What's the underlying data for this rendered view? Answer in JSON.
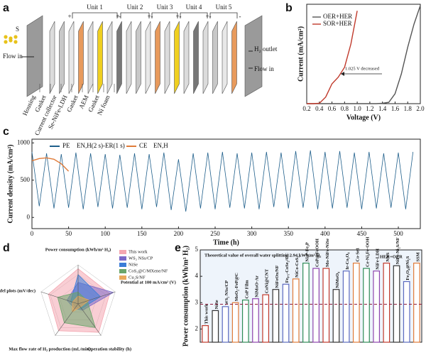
{
  "diagram": {
    "label": "a",
    "units": [
      "Unit 1",
      "Unit 2",
      "Unit 3",
      "Unit 4",
      "Unit 5"
    ],
    "molecule": "S",
    "left_inlet": "Flow in",
    "outlet": "H₂ outlet",
    "right_inlet": "Flow in",
    "layers": [
      "Housing",
      "Gasket",
      "Current collector",
      "Se-NiFe-LDH",
      "Gasket",
      "AEM",
      "Gasket",
      "Ni foam"
    ],
    "plus": "+",
    "minus": "-"
  },
  "chart_data": [
    {
      "label": "b",
      "type": "line",
      "xlabel": "Voltage (V)",
      "ylabel": "Current (mA/cm²)",
      "x": [
        0.2,
        0.3,
        0.4,
        0.5,
        0.6,
        0.7,
        0.8,
        0.9,
        1.0,
        1.1,
        1.2,
        1.3,
        1.4,
        1.5,
        1.6,
        1.7,
        1.8,
        1.9,
        2.0
      ],
      "series": [
        {
          "name": "OER+HER",
          "color": "#555555",
          "values": [
            0,
            0,
            0,
            0,
            0,
            0,
            0,
            0,
            0,
            0,
            0,
            0,
            5,
            20,
            150,
            450,
            850,
            1200,
            1480
          ]
        },
        {
          "name": "SOR+HER",
          "color": "#c0392b",
          "values": [
            0,
            0,
            5,
            100,
            300,
            400,
            550,
            900,
            1400,
            null,
            null,
            null,
            null,
            null,
            null,
            null,
            null,
            null,
            null
          ]
        }
      ],
      "xlim": [
        0.2,
        2.0
      ],
      "xticks": [
        0.2,
        0.4,
        0.6,
        0.8,
        {
          "value": 1.0,
          "label": "1.0"
        },
        1.2,
        1.4,
        1.6,
        1.8,
        {
          "value": 2.0,
          "label": "2.0"
        }
      ],
      "ylim": [
        0,
        1500
      ],
      "annotation": "1.025 V decreased",
      "legend": "upper left"
    },
    {
      "label": "c",
      "type": "line",
      "xlabel": "Time (h)",
      "ylabel": "Current density (mA/cm²)",
      "x": [
        0,
        10,
        20,
        30,
        40,
        50,
        60,
        70,
        80,
        90,
        100,
        110,
        120,
        130,
        140,
        150,
        160,
        170,
        180,
        190,
        200,
        210,
        220,
        230,
        240,
        250,
        260,
        270,
        280,
        290,
        300,
        310,
        320,
        330,
        340,
        350,
        360,
        370,
        380,
        390,
        400,
        410,
        420,
        430,
        440,
        450,
        460,
        470,
        480,
        490,
        500,
        510,
        520
      ],
      "series": [
        {
          "name": "PE",
          "color": "#1f5f8b",
          "values": [
            880,
            150,
            860,
            120,
            850,
            130,
            870,
            110,
            860,
            140,
            850,
            120,
            840,
            130,
            860,
            110,
            850,
            140,
            870,
            100,
            780,
            80,
            860,
            120,
            870,
            110,
            880,
            130,
            860,
            120,
            870,
            110,
            880,
            140,
            870,
            120,
            890,
            130,
            900,
            110,
            880,
            120,
            890,
            130,
            870,
            110,
            880,
            120,
            860,
            130,
            870,
            110,
            880
          ]
        },
        {
          "name": "CE",
          "color": "#e07b39",
          "values": [
            760,
            790,
            800,
            780,
            720,
            620,
            null,
            null,
            null,
            null,
            null,
            null,
            null,
            null,
            null,
            null,
            null,
            null,
            null,
            null,
            null,
            null,
            null,
            null,
            null,
            null,
            null,
            null,
            null,
            null,
            null,
            null,
            null,
            null,
            null,
            null,
            null,
            null,
            null,
            null,
            null,
            null,
            null,
            null,
            null,
            null,
            null,
            null,
            null,
            null,
            null,
            null,
            null
          ]
        }
      ],
      "annotations": [
        "EN,H(2 s)-ER(1 s)",
        "EN,H"
      ],
      "xlim": [
        0,
        530
      ],
      "xticks": [
        0,
        50,
        100,
        150,
        200,
        250,
        300,
        350,
        400,
        450,
        500
      ],
      "ylim": [
        -150,
        1050
      ],
      "yticks": [
        0,
        500,
        1000
      ]
    },
    {
      "label": "d",
      "type": "radar",
      "axes": [
        "Power consumption (kWh/m³ H₂)",
        "Potential at 100 mA/cm² (V)",
        "Operation stability (h)",
        "Max flow rate of H₂ production (mL/min)",
        "Tafel plots (mV/dec)"
      ],
      "rlim": [
        0,
        1
      ],
      "series": [
        {
          "name": "This work",
          "color": "#f4a6b0",
          "values": [
            0.9,
            0.85,
            0.9,
            0.85,
            0.8
          ]
        },
        {
          "name": "WS₂ NSs/CP",
          "color": "#7b68c8",
          "values": [
            0.55,
            0.95,
            0.2,
            0.15,
            0.3
          ]
        },
        {
          "name": "NiSe",
          "color": "#3b7dd8",
          "values": [
            0.75,
            0.6,
            0.15,
            0.1,
            0.2
          ]
        },
        {
          "name": "CoS₂@C/MXene/NF",
          "color": "#6aa56a",
          "values": [
            0.3,
            0.25,
            0.75,
            0.6,
            0.55
          ]
        },
        {
          "name": "Cu₂S/NF",
          "color": "#e8a85a",
          "values": [
            0.2,
            0.3,
            0.1,
            0.25,
            0.15
          ]
        }
      ]
    },
    {
      "label": "e",
      "type": "bar",
      "ylabel": "Power consumption (kWh/m³ H₂)",
      "categories": [
        "This work",
        "NiSe",
        "WS₂ NSs/CP",
        "MoO₂-FeP@C",
        "CoP Film",
        "NiMoO-Ar",
        "CoNi@CNT",
        "NiFeOx/NF",
        "Fe₀.₁-CoSe₂/CC",
        "NiCo-CoS₂",
        "Ni₂P-Fe₂P",
        "CoP@FeOOH",
        "Mo-NiFe-NiSe",
        "NiMoO₄",
        "Ir-Co₃O₄",
        "Co-Se1",
        "Ce-Ni₂Fe-OOH",
        "NiFe-LDH",
        "NNS",
        "NiFe-Ni₂S/NF",
        "Fe₃O₄@Ni₂S",
        "SSM"
      ],
      "values": [
        2.13,
        2.7,
        2.85,
        3.0,
        3.1,
        3.15,
        3.3,
        3.5,
        3.7,
        3.9,
        4.5,
        4.3,
        4.3,
        3.5,
        4.2,
        4.5,
        4.3,
        4.2,
        4.5,
        4.4,
        3.8,
        4.5
      ],
      "colors": [
        "#c0392b",
        "#333333",
        "#5b6abf",
        "#e07b39",
        "#2e8b57",
        "#8e44ad"
      ],
      "ylim": [
        1.5,
        5
      ],
      "yticks": [
        2,
        3,
        4,
        5
      ],
      "reference": 2.94,
      "reference_label": "Theoretical value of overall water splitting:2.94 kWh/m³ H₂",
      "group_label": "HER+OER"
    }
  ]
}
